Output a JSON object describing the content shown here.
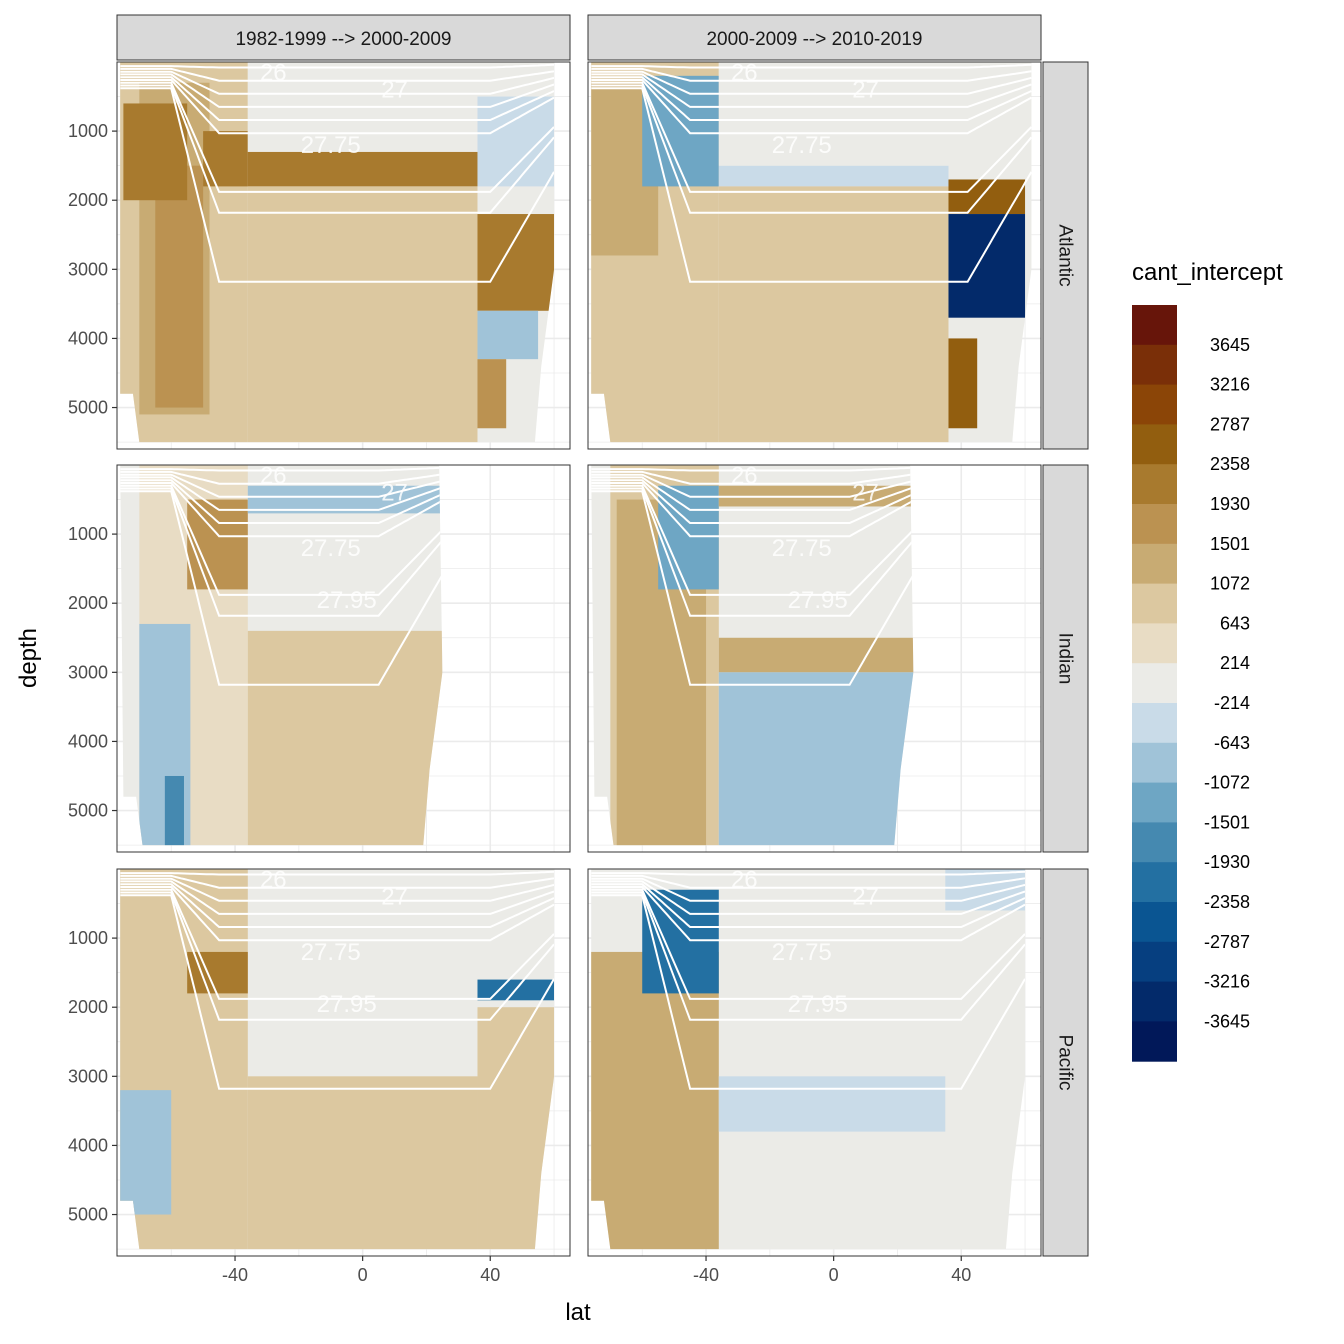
{
  "chart_data": {
    "type": "heatmap",
    "title": "",
    "xlabel": "lat",
    "ylabel": "depth",
    "xlim": [
      -77,
      65
    ],
    "ylim": [
      5600,
      0
    ],
    "x_ticks": [
      -40,
      0,
      40
    ],
    "x_tick_labels": [
      "-40",
      "0",
      "40"
    ],
    "y_ticks": [
      1000,
      2000,
      3000,
      4000,
      5000
    ],
    "y_tick_labels": [
      "1000",
      "2000",
      "3000",
      "4000",
      "5000"
    ],
    "columns": [
      "1982-1999 --> 2000-2009",
      "2000-2009 --> 2010-2019"
    ],
    "rows": [
      "Atlantic",
      "Indian",
      "Pacific"
    ],
    "legend": {
      "title": "cant_intercept",
      "position": "right",
      "labels": [
        "3645",
        "3216",
        "2787",
        "2358",
        "1930",
        "1501",
        "1072",
        "643",
        "214",
        "-214",
        "-643",
        "-1072",
        "-1501",
        "-1930",
        "-2358",
        "-2787",
        "-3216",
        "-3645"
      ],
      "colors": [
        "#67150a",
        "#7a2f08",
        "#8b4507",
        "#925e0f",
        "#a87a2e",
        "#bb9251",
        "#c8ab73",
        "#dcc8a0",
        "#e8dcc4",
        "#ebebe7",
        "#c9dbe8",
        "#a0c3d8",
        "#6ea6c4",
        "#4589b0",
        "#2370a2",
        "#0a5592",
        "#063f80",
        "#032a6a",
        "#011859"
      ]
    },
    "contour_labels": [
      "26",
      "27",
      "27.75",
      "27.95"
    ],
    "panels": [
      {
        "column": 0,
        "row": 0,
        "lat_max": 60,
        "labels": [
          "26",
          "27",
          "27.75"
        ],
        "regions": [
          {
            "lat": [
              -77,
              -36
            ],
            "depth": [
              0,
              5600
            ],
            "value": 643
          },
          {
            "lat": [
              -70,
              -48
            ],
            "depth": [
              300,
              5100
            ],
            "value": 1072
          },
          {
            "lat": [
              -65,
              -50
            ],
            "depth": [
              1500,
              5000
            ],
            "value": 1501
          },
          {
            "lat": [
              -75,
              -55
            ],
            "depth": [
              600,
              2000
            ],
            "value": 1930
          },
          {
            "lat": [
              -50,
              -36
            ],
            "depth": [
              1000,
              1800
            ],
            "value": 1930
          },
          {
            "lat": [
              -36,
              36
            ],
            "depth": [
              1300,
              1800
            ],
            "value": 1930
          },
          {
            "lat": [
              -36,
              36
            ],
            "depth": [
              0,
              1300
            ],
            "value": 0
          },
          {
            "lat": [
              -36,
              36
            ],
            "depth": [
              1800,
              5600
            ],
            "value": 643
          },
          {
            "lat": [
              36,
              60
            ],
            "depth": [
              500,
              1800
            ],
            "value": -643
          },
          {
            "lat": [
              36,
              60
            ],
            "depth": [
              2200,
              3600
            ],
            "value": 1930
          },
          {
            "lat": [
              36,
              55
            ],
            "depth": [
              3600,
              4300
            ],
            "value": -1072
          },
          {
            "lat": [
              36,
              45
            ],
            "depth": [
              4300,
              5300
            ],
            "value": 1501
          }
        ]
      },
      {
        "column": 1,
        "row": 0,
        "lat_max": 62,
        "labels": [
          "26",
          "27",
          "27.75"
        ],
        "regions": [
          {
            "lat": [
              -77,
              -36
            ],
            "depth": [
              0,
              5600
            ],
            "value": 643
          },
          {
            "lat": [
              -76,
              -55
            ],
            "depth": [
              300,
              2800
            ],
            "value": 1072
          },
          {
            "lat": [
              -60,
              -36
            ],
            "depth": [
              200,
              1800
            ],
            "value": -1501
          },
          {
            "lat": [
              -36,
              36
            ],
            "depth": [
              1500,
              1800
            ],
            "value": -643
          },
          {
            "lat": [
              -36,
              36
            ],
            "depth": [
              0,
              1500
            ],
            "value": 0
          },
          {
            "lat": [
              -36,
              36
            ],
            "depth": [
              1800,
              5600
            ],
            "value": 643
          },
          {
            "lat": [
              36,
              60
            ],
            "depth": [
              1700,
              2200
            ],
            "value": 2358
          },
          {
            "lat": [
              36,
              60
            ],
            "depth": [
              2200,
              3700
            ],
            "value": -3645
          },
          {
            "lat": [
              36,
              45
            ],
            "depth": [
              4000,
              5300
            ],
            "value": 2358
          }
        ]
      },
      {
        "column": 0,
        "row": 1,
        "lat_max": 25,
        "labels": [
          "26",
          "27",
          "27.75",
          "27.95"
        ],
        "regions": [
          {
            "lat": [
              -70,
              -36
            ],
            "depth": [
              0,
              5600
            ],
            "value": 214
          },
          {
            "lat": [
              -70,
              -54
            ],
            "depth": [
              2300,
              5600
            ],
            "value": -1072
          },
          {
            "lat": [
              -62,
              -56
            ],
            "depth": [
              4500,
              5600
            ],
            "value": -1930
          },
          {
            "lat": [
              -55,
              -36
            ],
            "depth": [
              500,
              1800
            ],
            "value": 1501
          },
          {
            "lat": [
              -36,
              25
            ],
            "depth": [
              300,
              700
            ],
            "value": -1072
          },
          {
            "lat": [
              -36,
              25
            ],
            "depth": [
              2400,
              5600
            ],
            "value": 643
          }
        ]
      },
      {
        "column": 1,
        "row": 1,
        "lat_max": 25,
        "labels": [
          "26",
          "27",
          "27.75",
          "27.95"
        ],
        "regions": [
          {
            "lat": [
              -70,
              -36
            ],
            "depth": [
              0,
              5600
            ],
            "value": 643
          },
          {
            "lat": [
              -68,
              -40
            ],
            "depth": [
              500,
              5600
            ],
            "value": 1072
          },
          {
            "lat": [
              -55,
              -36
            ],
            "depth": [
              300,
              1800
            ],
            "value": -1501
          },
          {
            "lat": [
              -36,
              25
            ],
            "depth": [
              300,
              600
            ],
            "value": 1072
          },
          {
            "lat": [
              -36,
              25
            ],
            "depth": [
              2500,
              3000
            ],
            "value": 1072
          },
          {
            "lat": [
              -36,
              25
            ],
            "depth": [
              3000,
              5600
            ],
            "value": -1072
          }
        ]
      },
      {
        "column": 0,
        "row": 2,
        "lat_max": 60,
        "labels": [
          "26",
          "27",
          "27.75",
          "27.95"
        ],
        "regions": [
          {
            "lat": [
              -77,
              -36
            ],
            "depth": [
              0,
              5600
            ],
            "value": 643
          },
          {
            "lat": [
              -77,
              -60
            ],
            "depth": [
              3200,
              5000
            ],
            "value": -1072
          },
          {
            "lat": [
              -55,
              -36
            ],
            "depth": [
              1200,
              1800
            ],
            "value": 1930
          },
          {
            "lat": [
              -36,
              36
            ],
            "depth": [
              3000,
              5600
            ],
            "value": 643
          },
          {
            "lat": [
              36,
              60
            ],
            "depth": [
              1600,
              1900
            ],
            "value": -2358
          },
          {
            "lat": [
              36,
              60
            ],
            "depth": [
              2000,
              5600
            ],
            "value": 643
          }
        ]
      },
      {
        "column": 1,
        "row": 2,
        "lat_max": 60,
        "labels": [
          "26",
          "27",
          "27.75",
          "27.95"
        ],
        "regions": [
          {
            "lat": [
              -77,
              -36
            ],
            "depth": [
              1200,
              5600
            ],
            "value": 1072
          },
          {
            "lat": [
              -60,
              -36
            ],
            "depth": [
              300,
              1800
            ],
            "value": -2358
          },
          {
            "lat": [
              -36,
              35
            ],
            "depth": [
              3000,
              3800
            ],
            "value": -643
          },
          {
            "lat": [
              35,
              60
            ],
            "depth": [
              0,
              600
            ],
            "value": -643
          }
        ]
      }
    ]
  }
}
